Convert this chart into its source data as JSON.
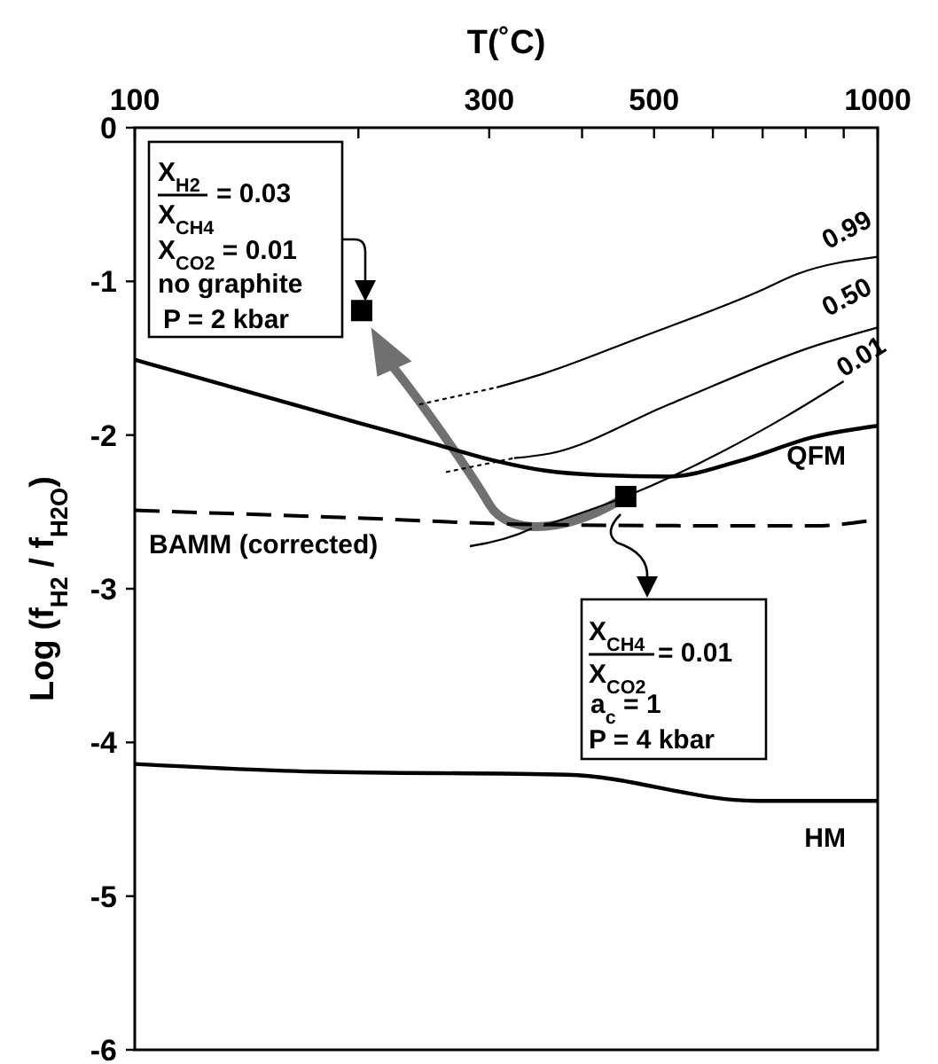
{
  "chart_data": {
    "type": "line",
    "xlabel": "T(˚C)",
    "ylabel": "Log (f$_{H2}$ / f$_{H2O}$)",
    "log": "x",
    "grid": false,
    "xlim": [
      100,
      1000
    ],
    "ylim": [
      -6,
      0
    ],
    "xticks": [
      100,
      {
        "value": 200,
        "label": null
      },
      300,
      {
        "value": 400,
        "label": null
      },
      500,
      {
        "value": 600,
        "label": null
      },
      {
        "value": 700,
        "label": null
      },
      {
        "value": 800,
        "label": null
      },
      {
        "value": 900,
        "label": null
      },
      1000
    ],
    "yticks": [
      0,
      -1,
      -2,
      -3,
      -4,
      -5,
      -6
    ],
    "series": [
      {
        "name": "QFM",
        "color": "#000000",
        "line_style": "solid",
        "x": [
          100,
          150,
          200,
          250,
          307,
          355,
          420,
          524,
          650,
          824,
          1000
        ],
        "values": [
          -1.51,
          -1.75,
          -1.92,
          -2.05,
          -2.17,
          -2.23,
          -2.26,
          -2.27,
          -2.17,
          -2.01,
          -1.94
        ]
      },
      {
        "name": "BAMM (corrected)",
        "color": "#000000",
        "line_style": "dashed",
        "x": [
          100,
          200,
          330,
          600,
          824,
          1000
        ],
        "values": [
          -2.49,
          -2.54,
          -2.58,
          -2.59,
          -2.59,
          -2.55
        ]
      },
      {
        "name": "HM",
        "color": "#000000",
        "line_style": "solid",
        "x": [
          100,
          174,
          382,
          688,
          824,
          1000
        ],
        "values": [
          -4.14,
          -4.19,
          -4.21,
          -4.38,
          -4.38,
          -4.38
        ]
      },
      {
        "color": "#000000",
        "line_style": "dotted",
        "x": [
          242,
          307
        ],
        "values": [
          -1.8,
          -1.69
        ]
      },
      {
        "name": "0.99",
        "color": "#000000",
        "line_style": "solid",
        "x": [
          307,
          355,
          476,
          688,
          781,
          1000
        ],
        "values": [
          -1.69,
          -1.6,
          -1.37,
          -1.07,
          -0.95,
          -0.84
        ]
      },
      {
        "color": "#000000",
        "line_style": "dotted",
        "x": [
          263,
          324
        ],
        "values": [
          -2.24,
          -2.15
        ]
      },
      {
        "name": "0.50",
        "color": "#000000",
        "line_style": "solid",
        "x": [
          324,
          362,
          524,
          823,
          1000
        ],
        "values": [
          -2.15,
          -2.12,
          -1.8,
          -1.42,
          -1.3
        ]
      },
      {
        "name": "0.01",
        "color": "#000000",
        "line_style": "solid",
        "x": [
          355,
          458,
          752,
          900
        ],
        "values": [
          -2.59,
          -2.4,
          -1.88,
          -1.65
        ]
      },
      {
        "type": "scatter",
        "marker": "square",
        "color": "#000000",
        "x": [
          202,
          458
        ],
        "values": [
          -1.19,
          -2.4
        ]
      }
    ],
    "annotations": [
      "X$_{H2}$",
      "X$_{CH4}$",
      "= 0.03",
      "X$_{CO2}$ = 0.01",
      "no graphite",
      "P = 2 kbar",
      "X$_{CH4}$",
      "X$_{CO2}$",
      "= 0.01",
      "a$_{c}$ = 1",
      "P = 4 kbar"
    ]
  }
}
